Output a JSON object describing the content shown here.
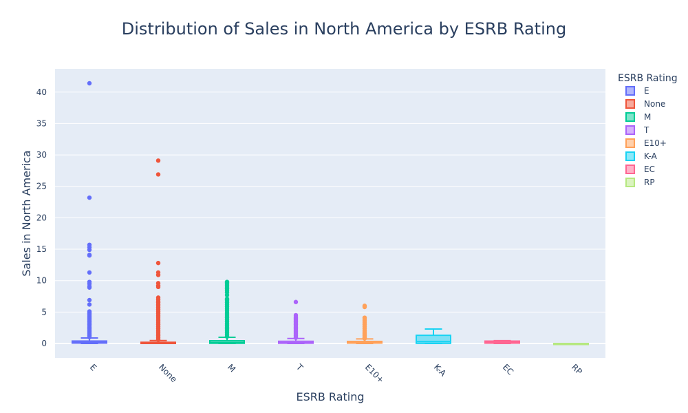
{
  "chart_data": {
    "type": "box",
    "title": "Distribution of Sales in North America by ESRB Rating",
    "xlabel": "ESRB Rating",
    "ylabel": "Sales in North America",
    "ylim": [
      -2.3,
      43.7
    ],
    "yticks": [
      0,
      5,
      10,
      15,
      20,
      25,
      30,
      35,
      40
    ],
    "grid": true,
    "legend_title": "ESRB Rating",
    "legend_position": "top-right",
    "categories": [
      "E",
      "None",
      "M",
      "T",
      "E10+",
      "K-A",
      "EC",
      "RP"
    ],
    "colors": [
      "#636efa",
      "#EF553B",
      "#00cc96",
      "#ab63fa",
      "#FFA15A",
      "#19d3f3",
      "#FF6692",
      "#B6E880"
    ],
    "series": [
      {
        "name": "E",
        "q1": 0.06,
        "median": 0.17,
        "q3": 0.39,
        "lower_fence": 0,
        "upper_fence": 0.88,
        "outliers": [
          41.4,
          23.2,
          15.7,
          15.3,
          14.9,
          14.1,
          14.0,
          11.3,
          9.8,
          9.5,
          9.1,
          8.9,
          6.9,
          6.2,
          5.1,
          5.0,
          4.8,
          4.6,
          4.4,
          4.2,
          4.0,
          3.8,
          3.6,
          3.4,
          3.2,
          3.0,
          2.8,
          2.6,
          2.4,
          2.2,
          2.0,
          1.8,
          1.6,
          1.4,
          1.2,
          1.0
        ]
      },
      {
        "name": "None",
        "q1": 0.0,
        "median": 0.05,
        "q3": 0.19,
        "lower_fence": 0,
        "upper_fence": 0.46,
        "outliers": [
          29.1,
          26.9,
          12.8,
          11.3,
          10.9,
          9.6,
          9.2,
          9.0,
          7.3,
          7.0,
          6.7,
          6.5,
          6.2,
          6.0,
          5.7,
          5.4,
          5.1,
          4.8,
          4.5,
          4.2,
          3.9,
          3.6,
          3.3,
          3.0,
          2.7,
          2.4,
          2.1,
          1.8,
          1.5,
          1.2,
          0.9,
          0.6
        ]
      },
      {
        "name": "M",
        "q1": 0.03,
        "median": 0.14,
        "q3": 0.43,
        "lower_fence": 0,
        "upper_fence": 0.99,
        "outliers": [
          9.8,
          9.7,
          9.6,
          9.3,
          9.0,
          8.7,
          8.4,
          8.1,
          7.7,
          7.1,
          7.0,
          6.8,
          6.5,
          6.2,
          5.9,
          5.6,
          5.3,
          5.0,
          4.7,
          4.4,
          4.1,
          3.8,
          3.5,
          3.2,
          2.9,
          2.6,
          2.3,
          2.0,
          1.7,
          1.4,
          1.1
        ]
      },
      {
        "name": "T",
        "q1": 0.04,
        "median": 0.12,
        "q3": 0.35,
        "lower_fence": 0,
        "upper_fence": 0.8,
        "outliers": [
          6.6,
          4.5,
          4.2,
          4.0,
          3.8,
          3.6,
          3.4,
          3.2,
          3.0,
          2.8,
          2.6,
          2.4,
          2.2,
          2.0,
          1.8,
          1.6,
          1.4,
          1.2,
          1.0,
          0.9
        ]
      },
      {
        "name": "E10+",
        "q1": 0.06,
        "median": 0.15,
        "q3": 0.33,
        "lower_fence": 0,
        "upper_fence": 0.73,
        "outliers": [
          6.0,
          5.8,
          4.1,
          3.9,
          3.6,
          3.3,
          3.0,
          2.7,
          2.4,
          2.1,
          1.8,
          1.6,
          1.4,
          1.2,
          1.0,
          0.9,
          0.8
        ]
      },
      {
        "name": "K-A",
        "q1": 0.02,
        "median": 0.3,
        "q3": 1.3,
        "lower_fence": 0,
        "upper_fence": 2.3,
        "outliers": []
      },
      {
        "name": "EC",
        "q1": 0.05,
        "median": 0.2,
        "q3": 0.38,
        "lower_fence": 0,
        "upper_fence": 0.45,
        "outliers": []
      },
      {
        "name": "RP",
        "q1": 0.0,
        "median": 0.0,
        "q3": 0.0,
        "lower_fence": 0,
        "upper_fence": 0.0,
        "outliers": []
      }
    ]
  }
}
